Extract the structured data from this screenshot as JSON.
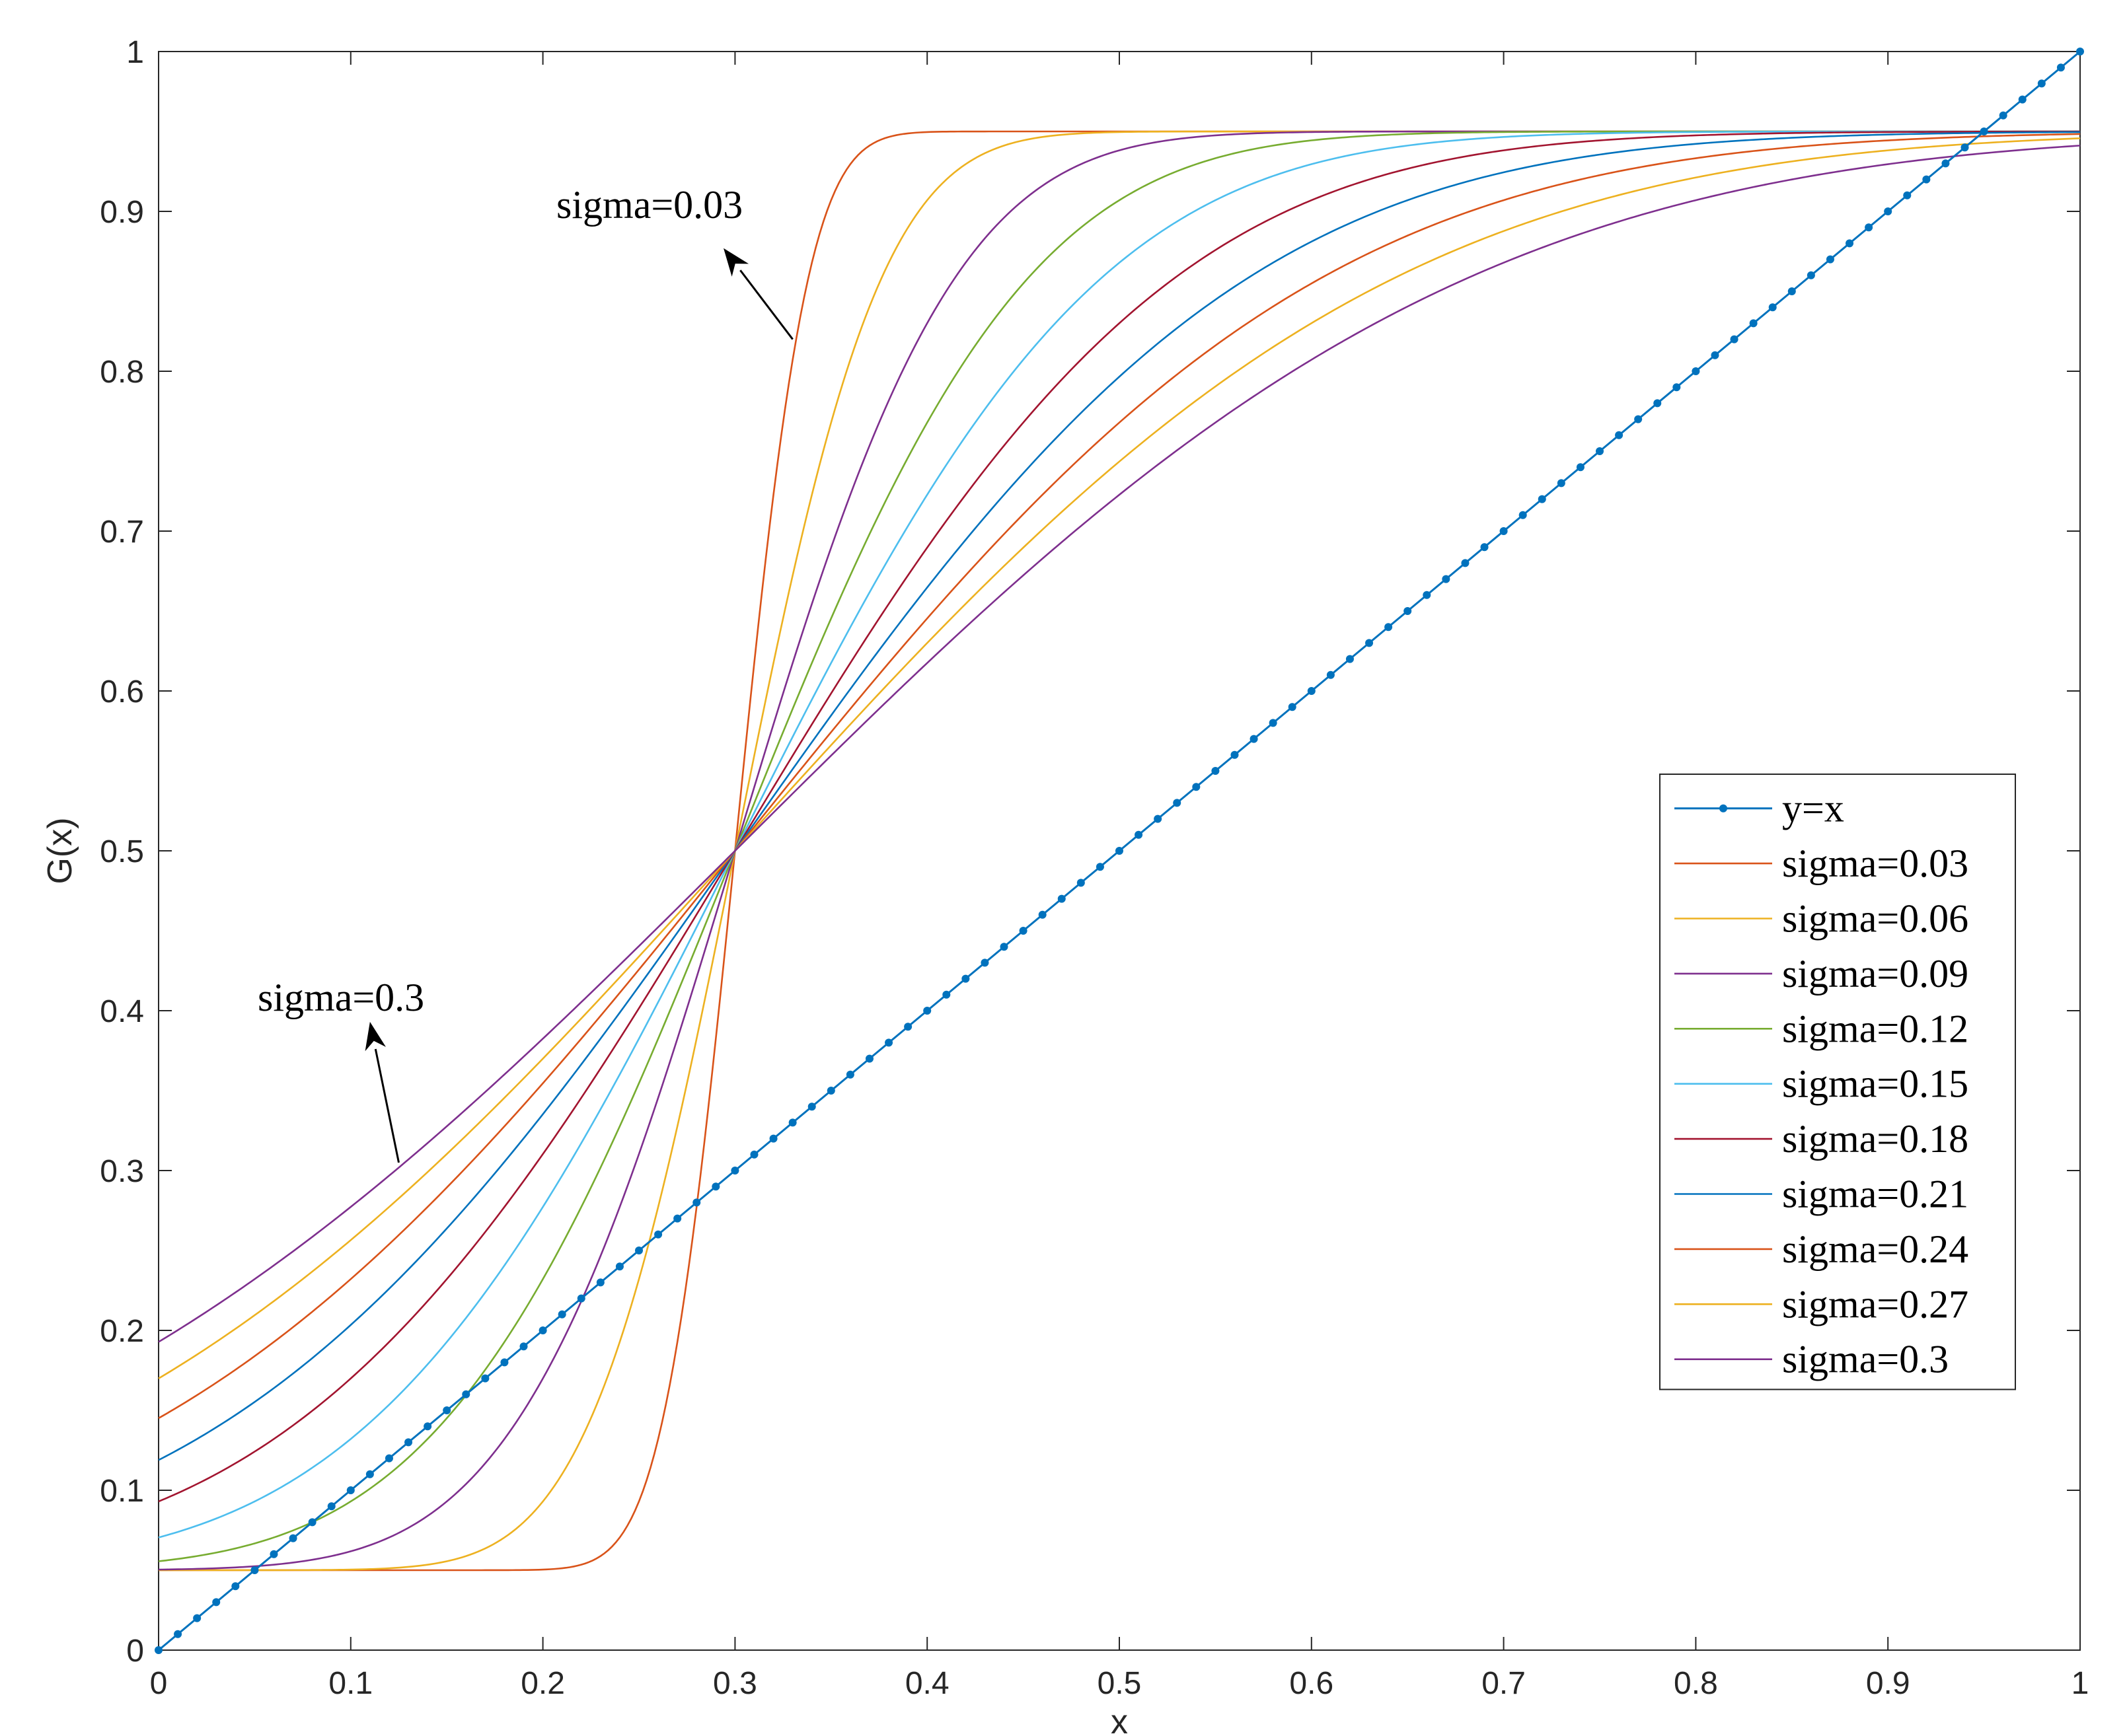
{
  "chart_data": {
    "type": "line",
    "title": "",
    "xlabel": "x",
    "ylabel": "G(x)",
    "xlim": [
      0,
      1
    ],
    "ylim": [
      0,
      1
    ],
    "xticks": [
      0,
      0.1,
      0.2,
      0.3,
      0.4,
      0.5,
      0.6,
      0.7,
      0.8,
      0.9,
      1
    ],
    "yticks": [
      0,
      0.1,
      0.2,
      0.3,
      0.4,
      0.5,
      0.6,
      0.7,
      0.8,
      0.9,
      1
    ],
    "xtick_labels": [
      "0",
      "0.1",
      "0.2",
      "0.3",
      "0.4",
      "0.5",
      "0.6",
      "0.7",
      "0.8",
      "0.9",
      "1"
    ],
    "ytick_labels": [
      "0",
      "0.1",
      "0.2",
      "0.3",
      "0.4",
      "0.5",
      "0.6",
      "0.7",
      "0.8",
      "0.9",
      "1"
    ],
    "grid": false,
    "legend_position": "right, middle",
    "model": {
      "description": "G(x) = 0.05 + 0.9 * Phi((x - 0.3) / sigma), normal CDF",
      "low": 0.05,
      "high": 0.95,
      "center": 0.3
    },
    "reference_series": {
      "name": "y=x",
      "color": "#0072BD",
      "marker": "dot",
      "x": [
        0,
        1
      ],
      "y": [
        0,
        1
      ],
      "marker_step": 0.01
    },
    "series": [
      {
        "name": "sigma=0.03",
        "sigma": 0.03,
        "color": "#D95319"
      },
      {
        "name": "sigma=0.06",
        "sigma": 0.06,
        "color": "#EDB120"
      },
      {
        "name": "sigma=0.09",
        "sigma": 0.09,
        "color": "#7E2F8E"
      },
      {
        "name": "sigma=0.12",
        "sigma": 0.12,
        "color": "#77AC30"
      },
      {
        "name": "sigma=0.15",
        "sigma": 0.15,
        "color": "#4DBEEE"
      },
      {
        "name": "sigma=0.18",
        "sigma": 0.18,
        "color": "#A2142F"
      },
      {
        "name": "sigma=0.21",
        "sigma": 0.21,
        "color": "#0072BD"
      },
      {
        "name": "sigma=0.24",
        "sigma": 0.24,
        "color": "#D95319"
      },
      {
        "name": "sigma=0.27",
        "sigma": 0.27,
        "color": "#EDB120"
      },
      {
        "name": "sigma=0.3",
        "sigma": 0.3,
        "color": "#7E2F8E"
      }
    ],
    "annotations": [
      {
        "text": "sigma=0.03",
        "arrow_tail": [
          0.33,
          0.82
        ],
        "arrow_head": [
          0.294,
          0.877
        ]
      },
      {
        "text": "sigma=0.3",
        "arrow_tail": [
          0.125,
          0.305
        ],
        "arrow_head": [
          0.11,
          0.393
        ]
      }
    ]
  }
}
